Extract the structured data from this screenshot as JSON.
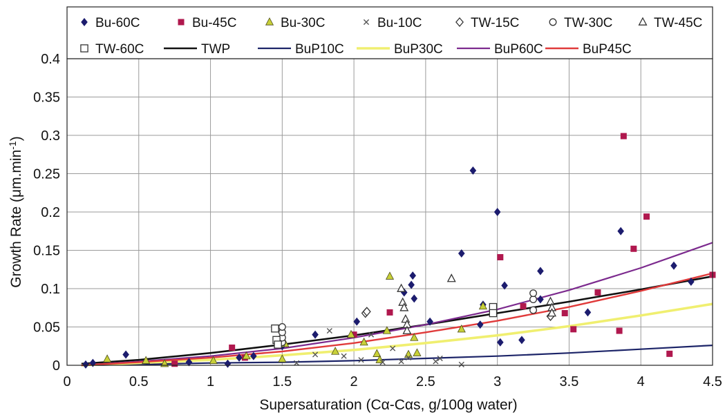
{
  "chart_data": {
    "type": "scatter",
    "xlabel": "Supersaturation (Cα-Cαs, g/100g water)",
    "ylabel_main": "Growth Rate (μm.min",
    "ylabel_sup": "-1",
    "ylabel_close": ")",
    "xlim": [
      0,
      4.5
    ],
    "ylim": [
      0,
      0.4
    ],
    "xticks": [
      0,
      0.5,
      1,
      1.5,
      2,
      2.5,
      3,
      3.5,
      4,
      4.5
    ],
    "xtick_labels": [
      "0",
      "0.5",
      "1",
      "1.5",
      "2",
      "2.5",
      "3",
      "3.5",
      "4",
      "4.5"
    ],
    "yticks": [
      0,
      0.05,
      0.1,
      0.15,
      0.2,
      0.25,
      0.3,
      0.35,
      0.4
    ],
    "ytick_labels": [
      "0",
      "0.05",
      "0.1",
      "0.15",
      "0.2",
      "0.25",
      "0.3",
      "0.35",
      "0.4"
    ],
    "grid": true,
    "legend_position": "top",
    "series": [
      {
        "name": "Bu-60C",
        "kind": "points",
        "marker": "diamond-filled",
        "color": "#1c1c6e",
        "points": [
          [
            0.13,
            0.001
          ],
          [
            0.18,
            0.003
          ],
          [
            0.41,
            0.014
          ],
          [
            0.85,
            0.004
          ],
          [
            1.12,
            0.002
          ],
          [
            1.2,
            0.01
          ],
          [
            1.3,
            0.012
          ],
          [
            1.5,
            0.025
          ],
          [
            1.73,
            0.04
          ],
          [
            2.02,
            0.057
          ],
          [
            2.35,
            0.095
          ],
          [
            2.4,
            0.105
          ],
          [
            2.41,
            0.117
          ],
          [
            2.42,
            0.087
          ],
          [
            2.53,
            0.057
          ],
          [
            2.75,
            0.146
          ],
          [
            2.83,
            0.254
          ],
          [
            2.88,
            0.053
          ],
          [
            2.9,
            0.079
          ],
          [
            3.0,
            0.2
          ],
          [
            3.02,
            0.03
          ],
          [
            3.05,
            0.104
          ],
          [
            3.17,
            0.033
          ],
          [
            3.3,
            0.123
          ],
          [
            3.3,
            0.086
          ],
          [
            3.63,
            0.069
          ],
          [
            3.86,
            0.175
          ],
          [
            4.23,
            0.13
          ],
          [
            4.35,
            0.109
          ]
        ]
      },
      {
        "name": "Bu-45C",
        "kind": "points",
        "marker": "square-filled",
        "color": "#b0184e",
        "points": [
          [
            0.75,
            0.002
          ],
          [
            1.15,
            0.023
          ],
          [
            1.24,
            0.01
          ],
          [
            1.5,
            0.035
          ],
          [
            2.0,
            0.04
          ],
          [
            2.25,
            0.069
          ],
          [
            3.02,
            0.141
          ],
          [
            3.18,
            0.077
          ],
          [
            3.47,
            0.068
          ],
          [
            3.53,
            0.047
          ],
          [
            3.7,
            0.095
          ],
          [
            3.85,
            0.045
          ],
          [
            3.88,
            0.299
          ],
          [
            3.95,
            0.152
          ],
          [
            4.04,
            0.194
          ],
          [
            4.2,
            0.015
          ],
          [
            4.5,
            0.118
          ]
        ]
      },
      {
        "name": "Bu-30C",
        "kind": "points",
        "marker": "triangle-filled",
        "color": "#c8d038",
        "points": [
          [
            0.28,
            0.008
          ],
          [
            0.55,
            0.006
          ],
          [
            0.68,
            0.002
          ],
          [
            1.02,
            0.006
          ],
          [
            1.25,
            0.012
          ],
          [
            1.5,
            0.008
          ],
          [
            1.52,
            0.028
          ],
          [
            1.87,
            0.018
          ],
          [
            1.98,
            0.04
          ],
          [
            2.07,
            0.03
          ],
          [
            2.16,
            0.015
          ],
          [
            2.18,
            0.007
          ],
          [
            2.23,
            0.045
          ],
          [
            2.25,
            0.116
          ],
          [
            2.38,
            0.014
          ],
          [
            2.42,
            0.036
          ],
          [
            2.44,
            0.016
          ],
          [
            2.75,
            0.047
          ],
          [
            2.9,
            0.077
          ]
        ]
      },
      {
        "name": "Bu-10C",
        "kind": "points",
        "marker": "x",
        "color": "#555555",
        "points": [
          [
            1.5,
            0.028
          ],
          [
            1.6,
            0.003
          ],
          [
            1.73,
            0.014
          ],
          [
            1.83,
            0.045
          ],
          [
            1.93,
            0.012
          ],
          [
            2.05,
            0.007
          ],
          [
            2.12,
            0.04
          ],
          [
            2.2,
            0.004
          ],
          [
            2.27,
            0.022
          ],
          [
            2.33,
            0.005
          ],
          [
            2.38,
            0.01
          ],
          [
            2.57,
            0.005
          ],
          [
            2.6,
            0.009
          ],
          [
            2.75,
            0.001
          ]
        ]
      },
      {
        "name": "TW-15C",
        "kind": "points",
        "marker": "diamond-open",
        "color": "#333333",
        "points": [
          [
            2.08,
            0.068
          ],
          [
            2.09,
            0.07
          ],
          [
            3.37,
            0.064
          ]
        ]
      },
      {
        "name": "TW-30C",
        "kind": "points",
        "marker": "circle-open",
        "color": "#333333",
        "points": [
          [
            1.5,
            0.03
          ],
          [
            1.5,
            0.036
          ],
          [
            1.5,
            0.043
          ],
          [
            1.5,
            0.05
          ],
          [
            3.25,
            0.072
          ],
          [
            3.25,
            0.086
          ],
          [
            3.25,
            0.094
          ]
        ]
      },
      {
        "name": "TW-45C",
        "kind": "points",
        "marker": "triangle-open",
        "color": "#333333",
        "points": [
          [
            2.33,
            0.1
          ],
          [
            2.34,
            0.082
          ],
          [
            2.35,
            0.075
          ],
          [
            2.36,
            0.06
          ],
          [
            2.37,
            0.053
          ],
          [
            2.37,
            0.045
          ],
          [
            2.68,
            0.113
          ],
          [
            3.37,
            0.083
          ],
          [
            3.38,
            0.075
          ],
          [
            3.38,
            0.068
          ]
        ]
      },
      {
        "name": "TW-60C",
        "kind": "points",
        "marker": "square-open",
        "color": "#333333",
        "points": [
          [
            1.45,
            0.048
          ],
          [
            1.46,
            0.033
          ],
          [
            1.47,
            0.027
          ],
          [
            2.97,
            0.076
          ],
          [
            2.97,
            0.068
          ]
        ]
      },
      {
        "name": "TWP",
        "kind": "line",
        "color": "#111111",
        "width": 2.6,
        "points": [
          [
            0.1,
            0.002
          ],
          [
            0.5,
            0.007
          ],
          [
            1.0,
            0.016
          ],
          [
            1.5,
            0.027
          ],
          [
            2.0,
            0.039
          ],
          [
            2.5,
            0.053
          ],
          [
            3.0,
            0.068
          ],
          [
            3.5,
            0.083
          ],
          [
            4.0,
            0.099
          ],
          [
            4.5,
            0.116
          ]
        ]
      },
      {
        "name": "BuP10C",
        "kind": "line",
        "color": "#1c2468",
        "width": 2.2,
        "points": [
          [
            0.1,
            0.0
          ],
          [
            0.5,
            0.001
          ],
          [
            1.0,
            0.003
          ],
          [
            1.5,
            0.004
          ],
          [
            2.0,
            0.006
          ],
          [
            2.5,
            0.009
          ],
          [
            3.0,
            0.012
          ],
          [
            3.5,
            0.016
          ],
          [
            4.0,
            0.021
          ],
          [
            4.5,
            0.026
          ]
        ]
      },
      {
        "name": "BuP30C",
        "kind": "line",
        "color": "#f0ef70",
        "width": 3.6,
        "points": [
          [
            0.1,
            0.0
          ],
          [
            0.5,
            0.003
          ],
          [
            1.0,
            0.007
          ],
          [
            1.5,
            0.013
          ],
          [
            2.0,
            0.02
          ],
          [
            2.5,
            0.029
          ],
          [
            3.0,
            0.039
          ],
          [
            3.5,
            0.051
          ],
          [
            4.0,
            0.065
          ],
          [
            4.5,
            0.08
          ]
        ]
      },
      {
        "name": "BuP60C",
        "kind": "line",
        "color": "#7c2a8e",
        "width": 2.2,
        "points": [
          [
            0.1,
            0.0
          ],
          [
            0.5,
            0.005
          ],
          [
            1.0,
            0.012
          ],
          [
            1.5,
            0.022
          ],
          [
            2.0,
            0.036
          ],
          [
            2.5,
            0.053
          ],
          [
            3.0,
            0.073
          ],
          [
            3.5,
            0.098
          ],
          [
            4.0,
            0.127
          ],
          [
            4.5,
            0.16
          ]
        ]
      },
      {
        "name": "BuP45C",
        "kind": "line",
        "color": "#e03a3a",
        "width": 2.4,
        "points": [
          [
            0.1,
            0.0
          ],
          [
            0.5,
            0.004
          ],
          [
            1.0,
            0.01
          ],
          [
            1.5,
            0.018
          ],
          [
            2.0,
            0.029
          ],
          [
            2.5,
            0.043
          ],
          [
            3.0,
            0.058
          ],
          [
            3.5,
            0.076
          ],
          [
            4.0,
            0.097
          ],
          [
            4.5,
            0.12
          ]
        ]
      }
    ]
  }
}
